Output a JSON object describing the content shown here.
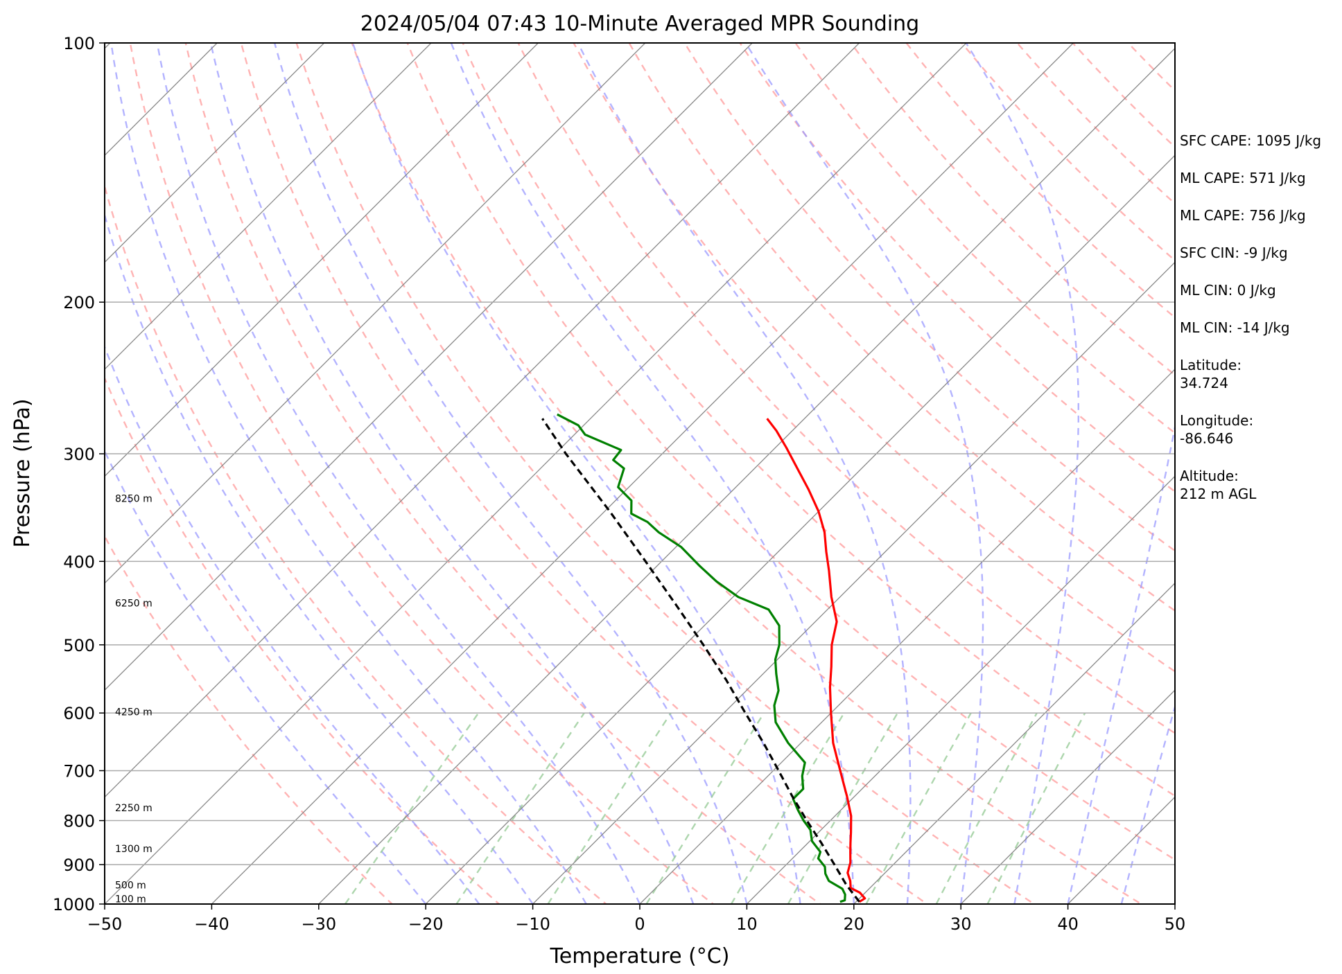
{
  "chart_data": {
    "type": "skew-t",
    "title": "2024/05/04 07:43 10-Minute Averaged MPR Sounding",
    "xlabel": "Temperature (°C)",
    "ylabel": "Pressure (hPa)",
    "xlim": [
      -50,
      50
    ],
    "ylim": [
      1000,
      100
    ],
    "y_scale": "log",
    "grid": true,
    "x_ticks": [
      "−50",
      "−40",
      "−30",
      "−20",
      "−10",
      "0",
      "10",
      "20",
      "30",
      "40",
      "50"
    ],
    "y_ticks": [
      {
        "p": 100,
        "label": "100"
      },
      {
        "p": 200,
        "label": "200"
      },
      {
        "p": 300,
        "label": "300"
      },
      {
        "p": 400,
        "label": "400"
      },
      {
        "p": 500,
        "label": "500"
      },
      {
        "p": 600,
        "label": "600"
      },
      {
        "p": 700,
        "label": "700"
      },
      {
        "p": 800,
        "label": "800"
      },
      {
        "p": 900,
        "label": "900"
      },
      {
        "p": 1000,
        "label": "1000"
      }
    ],
    "height_labels": [
      {
        "p": 986,
        "label": "100 m"
      },
      {
        "p": 950,
        "label": "500 m"
      },
      {
        "p": 862,
        "label": "1300 m"
      },
      {
        "p": 773,
        "label": "2250 m"
      },
      {
        "p": 598,
        "label": "4250 m"
      },
      {
        "p": 447,
        "label": "6250 m"
      },
      {
        "p": 338,
        "label": "8250 m"
      }
    ],
    "series": [
      {
        "name": "Temperature",
        "color": "#ff0000",
        "points": [
          {
            "p": 994,
            "t": 20.3
          },
          {
            "p": 985,
            "t": 20.5
          },
          {
            "p": 970,
            "t": 19.5
          },
          {
            "p": 958,
            "t": 18.2
          },
          {
            "p": 940,
            "t": 17.5
          },
          {
            "p": 920,
            "t": 16.5
          },
          {
            "p": 895,
            "t": 15.8
          },
          {
            "p": 870,
            "t": 14.8
          },
          {
            "p": 850,
            "t": 14.0
          },
          {
            "p": 825,
            "t": 13.0
          },
          {
            "p": 790,
            "t": 11.5
          },
          {
            "p": 750,
            "t": 9.3
          },
          {
            "p": 720,
            "t": 7.5
          },
          {
            "p": 685,
            "t": 5.3
          },
          {
            "p": 650,
            "t": 3.0
          },
          {
            "p": 600,
            "t": 0.0
          },
          {
            "p": 560,
            "t": -2.5
          },
          {
            "p": 530,
            "t": -4.3
          },
          {
            "p": 500,
            "t": -6.3
          },
          {
            "p": 470,
            "t": -8.0
          },
          {
            "p": 440,
            "t": -10.8
          },
          {
            "p": 410,
            "t": -13.5
          },
          {
            "p": 390,
            "t": -15.5
          },
          {
            "p": 370,
            "t": -17.5
          },
          {
            "p": 350,
            "t": -20.0
          },
          {
            "p": 330,
            "t": -23.0
          },
          {
            "p": 312,
            "t": -26.0
          },
          {
            "p": 295,
            "t": -29.0
          },
          {
            "p": 282,
            "t": -31.5
          },
          {
            "p": 273,
            "t": -33.5
          }
        ]
      },
      {
        "name": "Dewpoint",
        "color": "#008000",
        "points": [
          {
            "p": 994,
            "t": 18.5
          },
          {
            "p": 990,
            "t": 18.8
          },
          {
            "p": 975,
            "t": 18.3
          },
          {
            "p": 960,
            "t": 17.5
          },
          {
            "p": 940,
            "t": 15.5
          },
          {
            "p": 922,
            "t": 14.5
          },
          {
            "p": 905,
            "t": 13.8
          },
          {
            "p": 885,
            "t": 12.4
          },
          {
            "p": 870,
            "t": 12.0
          },
          {
            "p": 845,
            "t": 10.2
          },
          {
            "p": 820,
            "t": 9.0
          },
          {
            "p": 800,
            "t": 7.5
          },
          {
            "p": 778,
            "t": 6.0
          },
          {
            "p": 755,
            "t": 4.5
          },
          {
            "p": 735,
            "t": 4.5
          },
          {
            "p": 710,
            "t": 3.2
          },
          {
            "p": 685,
            "t": 2.2
          },
          {
            "p": 650,
            "t": -1.2
          },
          {
            "p": 615,
            "t": -4.3
          },
          {
            "p": 588,
            "t": -6.0
          },
          {
            "p": 565,
            "t": -7.0
          },
          {
            "p": 540,
            "t": -8.8
          },
          {
            "p": 520,
            "t": -10.2
          },
          {
            "p": 500,
            "t": -11.2
          },
          {
            "p": 475,
            "t": -13.0
          },
          {
            "p": 455,
            "t": -15.5
          },
          {
            "p": 440,
            "t": -19.5
          },
          {
            "p": 422,
            "t": -23.0
          },
          {
            "p": 405,
            "t": -26.0
          },
          {
            "p": 385,
            "t": -29.5
          },
          {
            "p": 370,
            "t": -33.0
          },
          {
            "p": 360,
            "t": -35.0
          },
          {
            "p": 352,
            "t": -37.3
          },
          {
            "p": 340,
            "t": -38.5
          },
          {
            "p": 328,
            "t": -41.0
          },
          {
            "p": 312,
            "t": -42.2
          },
          {
            "p": 305,
            "t": -44.0
          },
          {
            "p": 297,
            "t": -44.2
          },
          {
            "p": 285,
            "t": -49.0
          },
          {
            "p": 278,
            "t": -50.5
          },
          {
            "p": 270,
            "t": -53.5
          }
        ]
      },
      {
        "name": "Parcel",
        "color": "#000000",
        "points": [
          {
            "p": 994,
            "t": 20.3
          },
          {
            "p": 950,
            "t": 17.5
          },
          {
            "p": 900,
            "t": 14.5
          },
          {
            "p": 850,
            "t": 11.3
          },
          {
            "p": 800,
            "t": 7.8
          },
          {
            "p": 750,
            "t": 4.2
          },
          {
            "p": 700,
            "t": 0.5
          },
          {
            "p": 650,
            "t": -3.5
          },
          {
            "p": 600,
            "t": -8.0
          },
          {
            "p": 550,
            "t": -12.8
          },
          {
            "p": 500,
            "t": -18.3
          },
          {
            "p": 450,
            "t": -24.5
          },
          {
            "p": 400,
            "t": -31.5
          },
          {
            "p": 350,
            "t": -39.5
          },
          {
            "p": 300,
            "t": -49.0
          },
          {
            "p": 273,
            "t": -54.5
          }
        ]
      }
    ]
  },
  "stats": [
    "SFC CAPE: 1095 J/kg",
    "ML CAPE: 571 J/kg",
    "ML CAPE: 756 J/kg",
    "SFC CIN: -9 J/kg",
    "ML CIN: 0 J/kg",
    "ML CIN: -14 J/kg",
    "Latitude:",
    "34.724",
    "Longitude:",
    "-86.646",
    "Altitude:",
    "212 m AGL"
  ],
  "colors": {
    "temperature": "#ff0000",
    "dewpoint": "#008000",
    "parcel": "#000000",
    "dry_adiabat": "#ff9999",
    "moist_adiabat": "#9999ff",
    "mixing_ratio": "#99cc99",
    "isotherm": "#888888",
    "isobar": "#aaaaaa"
  }
}
